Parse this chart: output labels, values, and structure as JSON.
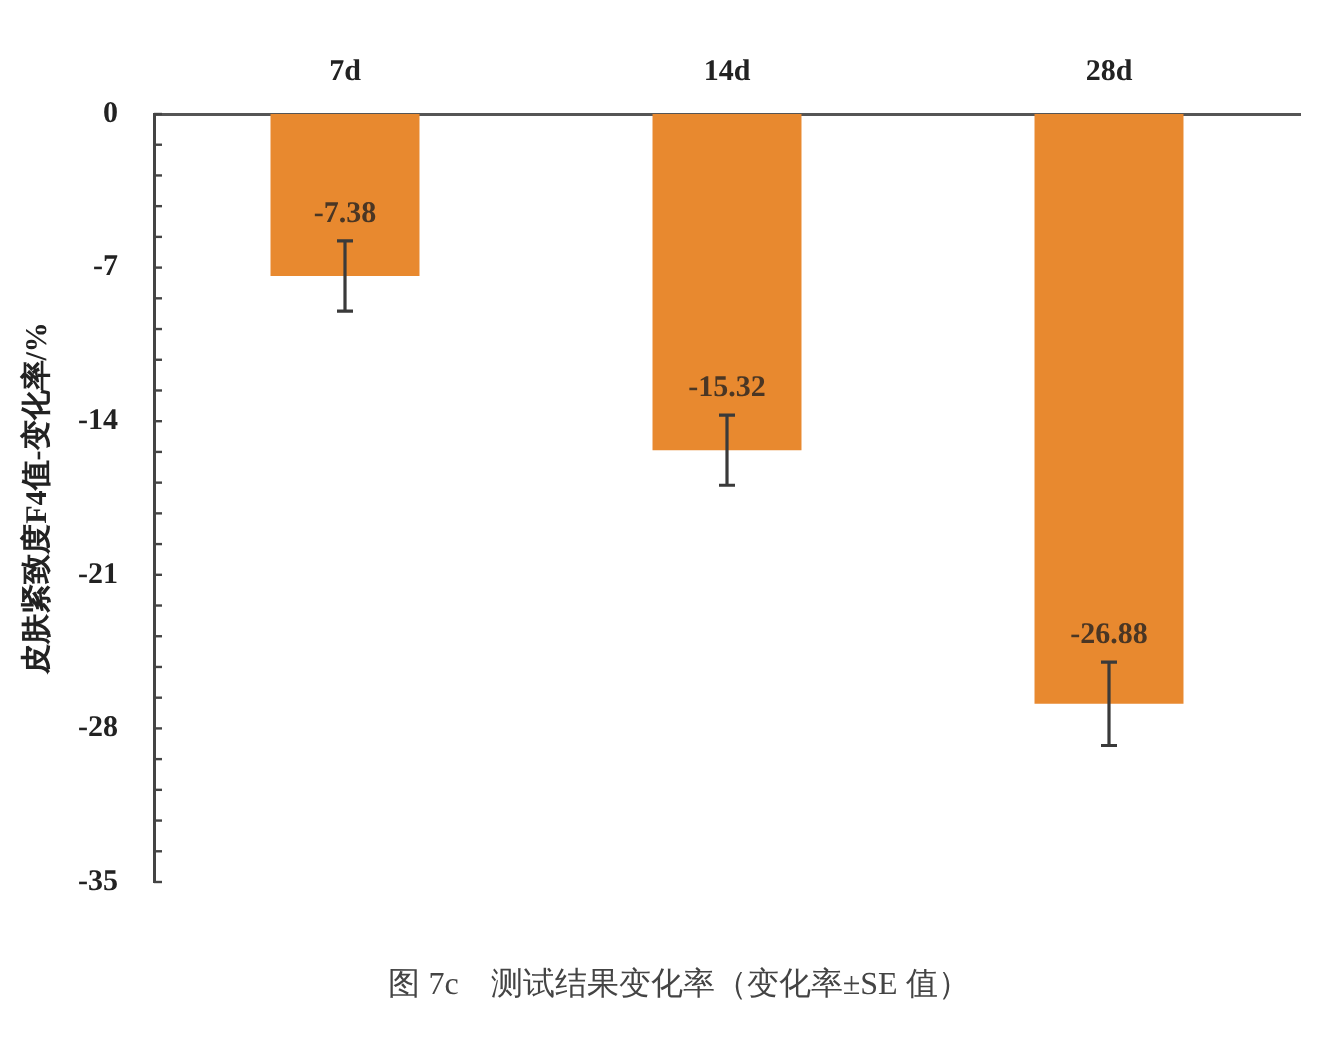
{
  "chart_data": {
    "type": "bar",
    "categories": [
      "7d",
      "14d",
      "28d"
    ],
    "values": [
      -7.38,
      -15.32,
      -26.88
    ],
    "errors": [
      1.6,
      1.6,
      1.9
    ],
    "color": "#e8892f",
    "data_labels": true,
    "ylabel": "皮肤紧致度F4值-变化率/%",
    "ylim": [
      -35,
      0
    ],
    "yticks": [
      0,
      {
        "value": -1.4,
        "label": null
      },
      {
        "value": -2.8,
        "label": null
      },
      {
        "value": -4.2,
        "label": null
      },
      {
        "value": -5.6,
        "label": null
      },
      -7,
      {
        "value": -8.4,
        "label": null
      },
      {
        "value": -9.8,
        "label": null
      },
      {
        "value": -11.2,
        "label": null
      },
      {
        "value": -12.6,
        "label": null
      },
      -14,
      {
        "value": -15.4,
        "label": null
      },
      {
        "value": -16.8,
        "label": null
      },
      {
        "value": -18.2,
        "label": null
      },
      {
        "value": -19.6,
        "label": null
      },
      -21,
      {
        "value": -22.4,
        "label": null
      },
      {
        "value": -23.8,
        "label": null
      },
      {
        "value": -25.2,
        "label": null
      },
      {
        "value": -26.6,
        "label": null
      },
      -28,
      {
        "value": -29.4,
        "label": null
      },
      {
        "value": -30.8,
        "label": null
      },
      {
        "value": -32.2,
        "label": null
      },
      {
        "value": -33.6,
        "label": null
      },
      -35
    ],
    "annotations": [
      "图 7c　测试结果变化率（变化率±SE 值）"
    ]
  }
}
